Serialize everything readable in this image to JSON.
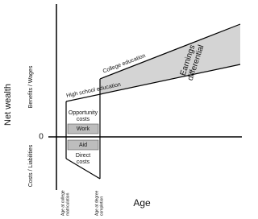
{
  "axes": {
    "y_label": "Net wealth",
    "x_label": "Age",
    "zero": "0",
    "upper": "Benefits / Wages",
    "lower": "Costs / Liabilities"
  },
  "lines": {
    "college": "College education",
    "high_school": "High school education"
  },
  "area": {
    "differential": [
      "Earnings",
      "differential"
    ]
  },
  "boxes": {
    "opportunity": [
      "Opportunity",
      "costs"
    ],
    "work": "Work",
    "aid": "Aid",
    "direct": [
      "Direct",
      "costs"
    ]
  },
  "ages": {
    "matriculation": [
      "Age at college",
      "matriculation"
    ],
    "completion": [
      "Age at degree",
      "completion"
    ]
  }
}
